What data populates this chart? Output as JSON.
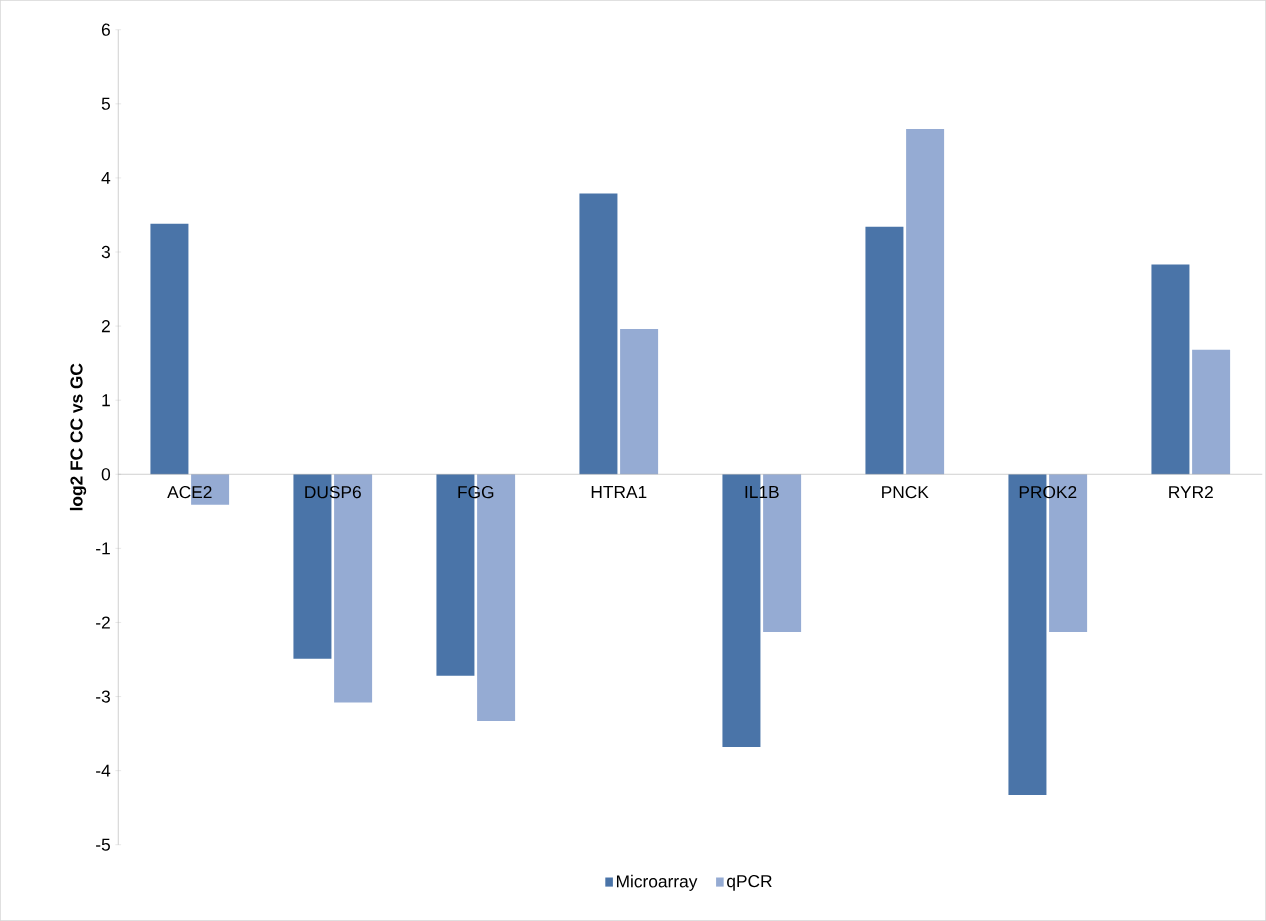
{
  "chart_data": {
    "type": "bar",
    "ylabel": "log2 FC CC vs GC",
    "categories": [
      "ACE2",
      "DUSP6",
      "FGG",
      "HTRA1",
      "IL1B",
      "PNCK",
      "PROK2",
      "RYR2"
    ],
    "series": [
      {
        "name": "Microarray",
        "color": "#4a74a8",
        "values": [
          3.38,
          -2.49,
          -2.72,
          3.79,
          -3.68,
          3.34,
          -4.33,
          2.83
        ]
      },
      {
        "name": "qPCR",
        "color": "#95abd3",
        "values": [
          -0.41,
          -3.08,
          -3.33,
          1.96,
          -2.13,
          4.66,
          -2.13,
          1.68
        ]
      }
    ],
    "ylim": [
      -5,
      6
    ],
    "yticks": [
      -5,
      -4,
      -3,
      -2,
      -1,
      0,
      1,
      2,
      3,
      4,
      5,
      6
    ],
    "grid": false,
    "legend": "bottom"
  }
}
